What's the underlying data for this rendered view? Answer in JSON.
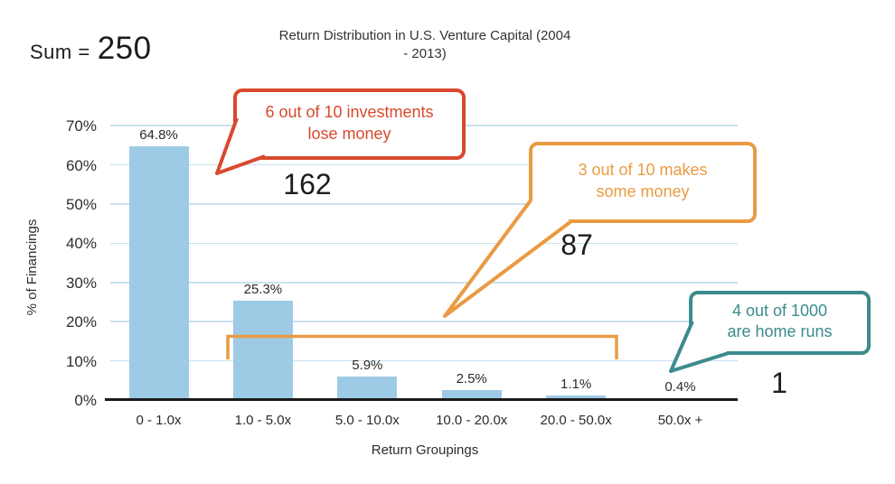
{
  "chart_data": {
    "type": "bar",
    "title": "Return Distribution in U.S. Venture Capital (2004 - 2013)",
    "title_lines": [
      "Return Distribution in U.S. Venture Capital (2004",
      "- 2013)"
    ],
    "sum_label": "Sum =",
    "sum_value": "250",
    "categories": [
      "0 - 1.0x",
      "1.0 - 5.0x",
      "5.0 - 10.0x",
      "10.0 - 20.0x",
      "20.0 - 50.0x",
      "50.0x +"
    ],
    "values": [
      64.8,
      25.3,
      5.9,
      2.5,
      1.1,
      0.4
    ],
    "value_labels": [
      "64.8%",
      "25.3%",
      "5.9%",
      "2.5%",
      "1.1%",
      "0.4%"
    ],
    "xlabel": "Return Groupings",
    "ylabel": "% of Financings",
    "ylim": [
      0,
      70
    ],
    "ytick_labels": [
      "0%",
      "10%",
      "20%",
      "30%",
      "40%",
      "50%",
      "60%",
      "70%"
    ],
    "grid": true,
    "legend": false,
    "bar_color": "#9dcbe6",
    "gridline_color": "#c9e1ef",
    "annotations": {
      "lose_money": {
        "label_line1": "6 out of 10 investments",
        "label_line2": "lose money",
        "count": "162",
        "color": "#d8492f",
        "applies_to": [
          "0 - 1.0x"
        ]
      },
      "some_money": {
        "label_line1": "3 out of 10 makes",
        "label_line2": "some money",
        "count": "87",
        "color": "#e99b43",
        "applies_to": [
          "1.0 - 5.0x",
          "5.0 - 10.0x",
          "10.0 - 20.0x",
          "20.0 - 50.0x"
        ]
      },
      "home_runs": {
        "label_line1": "4 out of 1000",
        "label_line2": "are home runs",
        "count": "1",
        "color": "#3c8b8d",
        "applies_to": [
          "50.0x +"
        ]
      }
    }
  }
}
